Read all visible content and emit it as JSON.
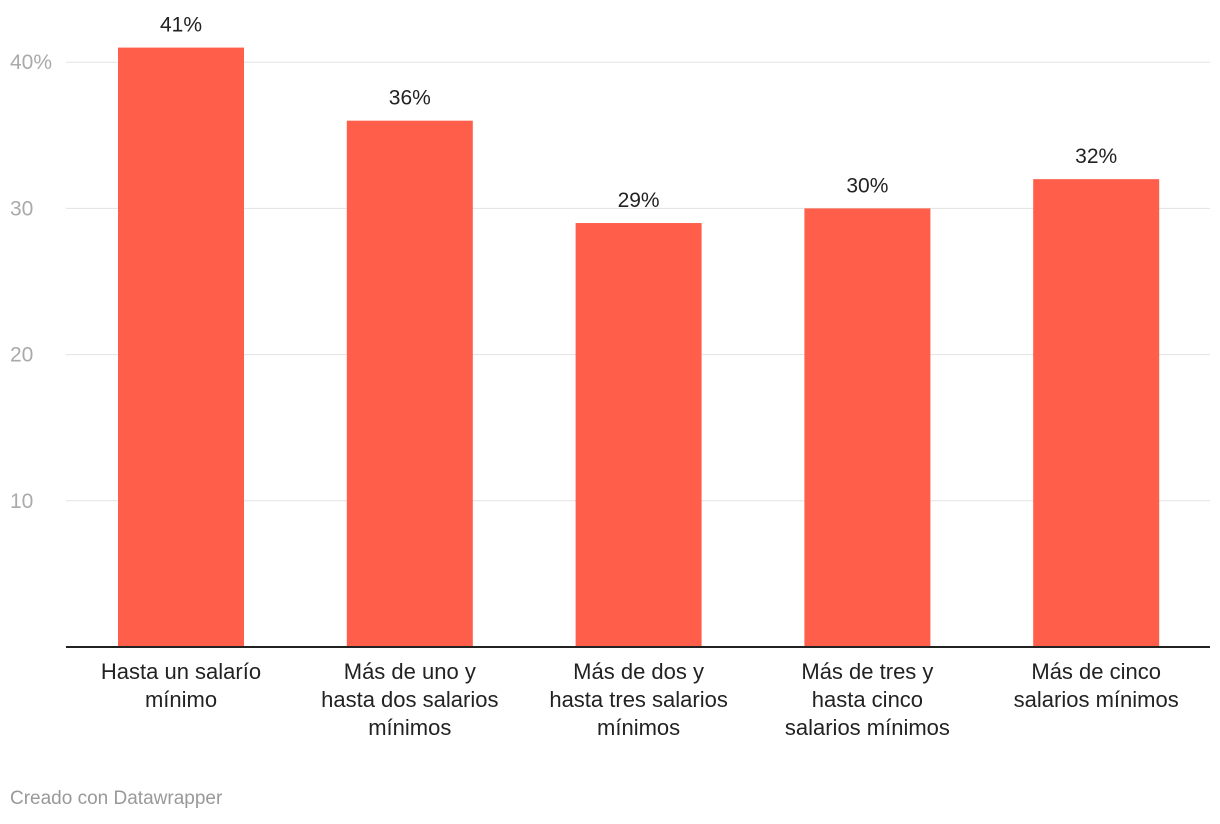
{
  "chart_data": {
    "type": "bar",
    "categories": [
      [
        "Hasta un salarío",
        "mínimo"
      ],
      [
        "Más de uno y",
        "hasta dos salarios",
        "mínimos"
      ],
      [
        "Más de dos y",
        "hasta tres salarios",
        "mínimos"
      ],
      [
        "Más de tres y",
        "hasta cinco",
        "salarios mínimos"
      ],
      [
        "Más de cinco",
        "salarios mínimos"
      ]
    ],
    "values": [
      41,
      36,
      29,
      30,
      32
    ],
    "value_labels": [
      "41%",
      "36%",
      "29%",
      "30%",
      "32%"
    ],
    "ylim": [
      0,
      44
    ],
    "y_ticks": [
      10,
      20,
      30,
      40
    ],
    "y_tick_labels": [
      "10",
      "20",
      "30",
      "40%"
    ],
    "grid": true,
    "bar_color": "#ff5f4a"
  },
  "credit": "Creado con Datawrapper"
}
